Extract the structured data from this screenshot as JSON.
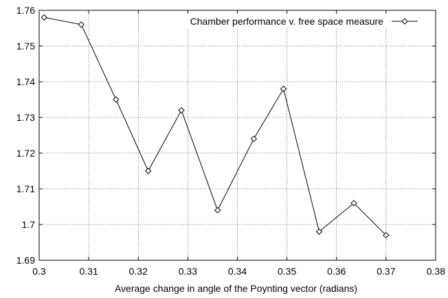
{
  "chart_data": {
    "type": "line",
    "title": "",
    "xlabel": "Average change in angle of the Poynting vector (radians)",
    "ylabel": "",
    "xlim": [
      0.3,
      0.38
    ],
    "ylim": [
      1.69,
      1.76
    ],
    "x_ticks": [
      "0.3",
      "0.31",
      "0.32",
      "0.33",
      "0.34",
      "0.35",
      "0.36",
      "0.37",
      "0.38"
    ],
    "y_ticks": [
      "1.69",
      "1.7",
      "1.71",
      "1.72",
      "1.73",
      "1.74",
      "1.75",
      "1.76"
    ],
    "grid": true,
    "legend_position": "top-right",
    "series": [
      {
        "name": "Chamber performance v. free space measure",
        "marker": "diamond",
        "x": [
          0.301,
          0.3085,
          0.3155,
          0.322,
          0.3287,
          0.336,
          0.3433,
          0.3493,
          0.3565,
          0.3635,
          0.37
        ],
        "y": [
          1.758,
          1.756,
          1.735,
          1.715,
          1.732,
          1.704,
          1.724,
          1.738,
          1.698,
          1.706,
          1.697
        ]
      }
    ]
  }
}
